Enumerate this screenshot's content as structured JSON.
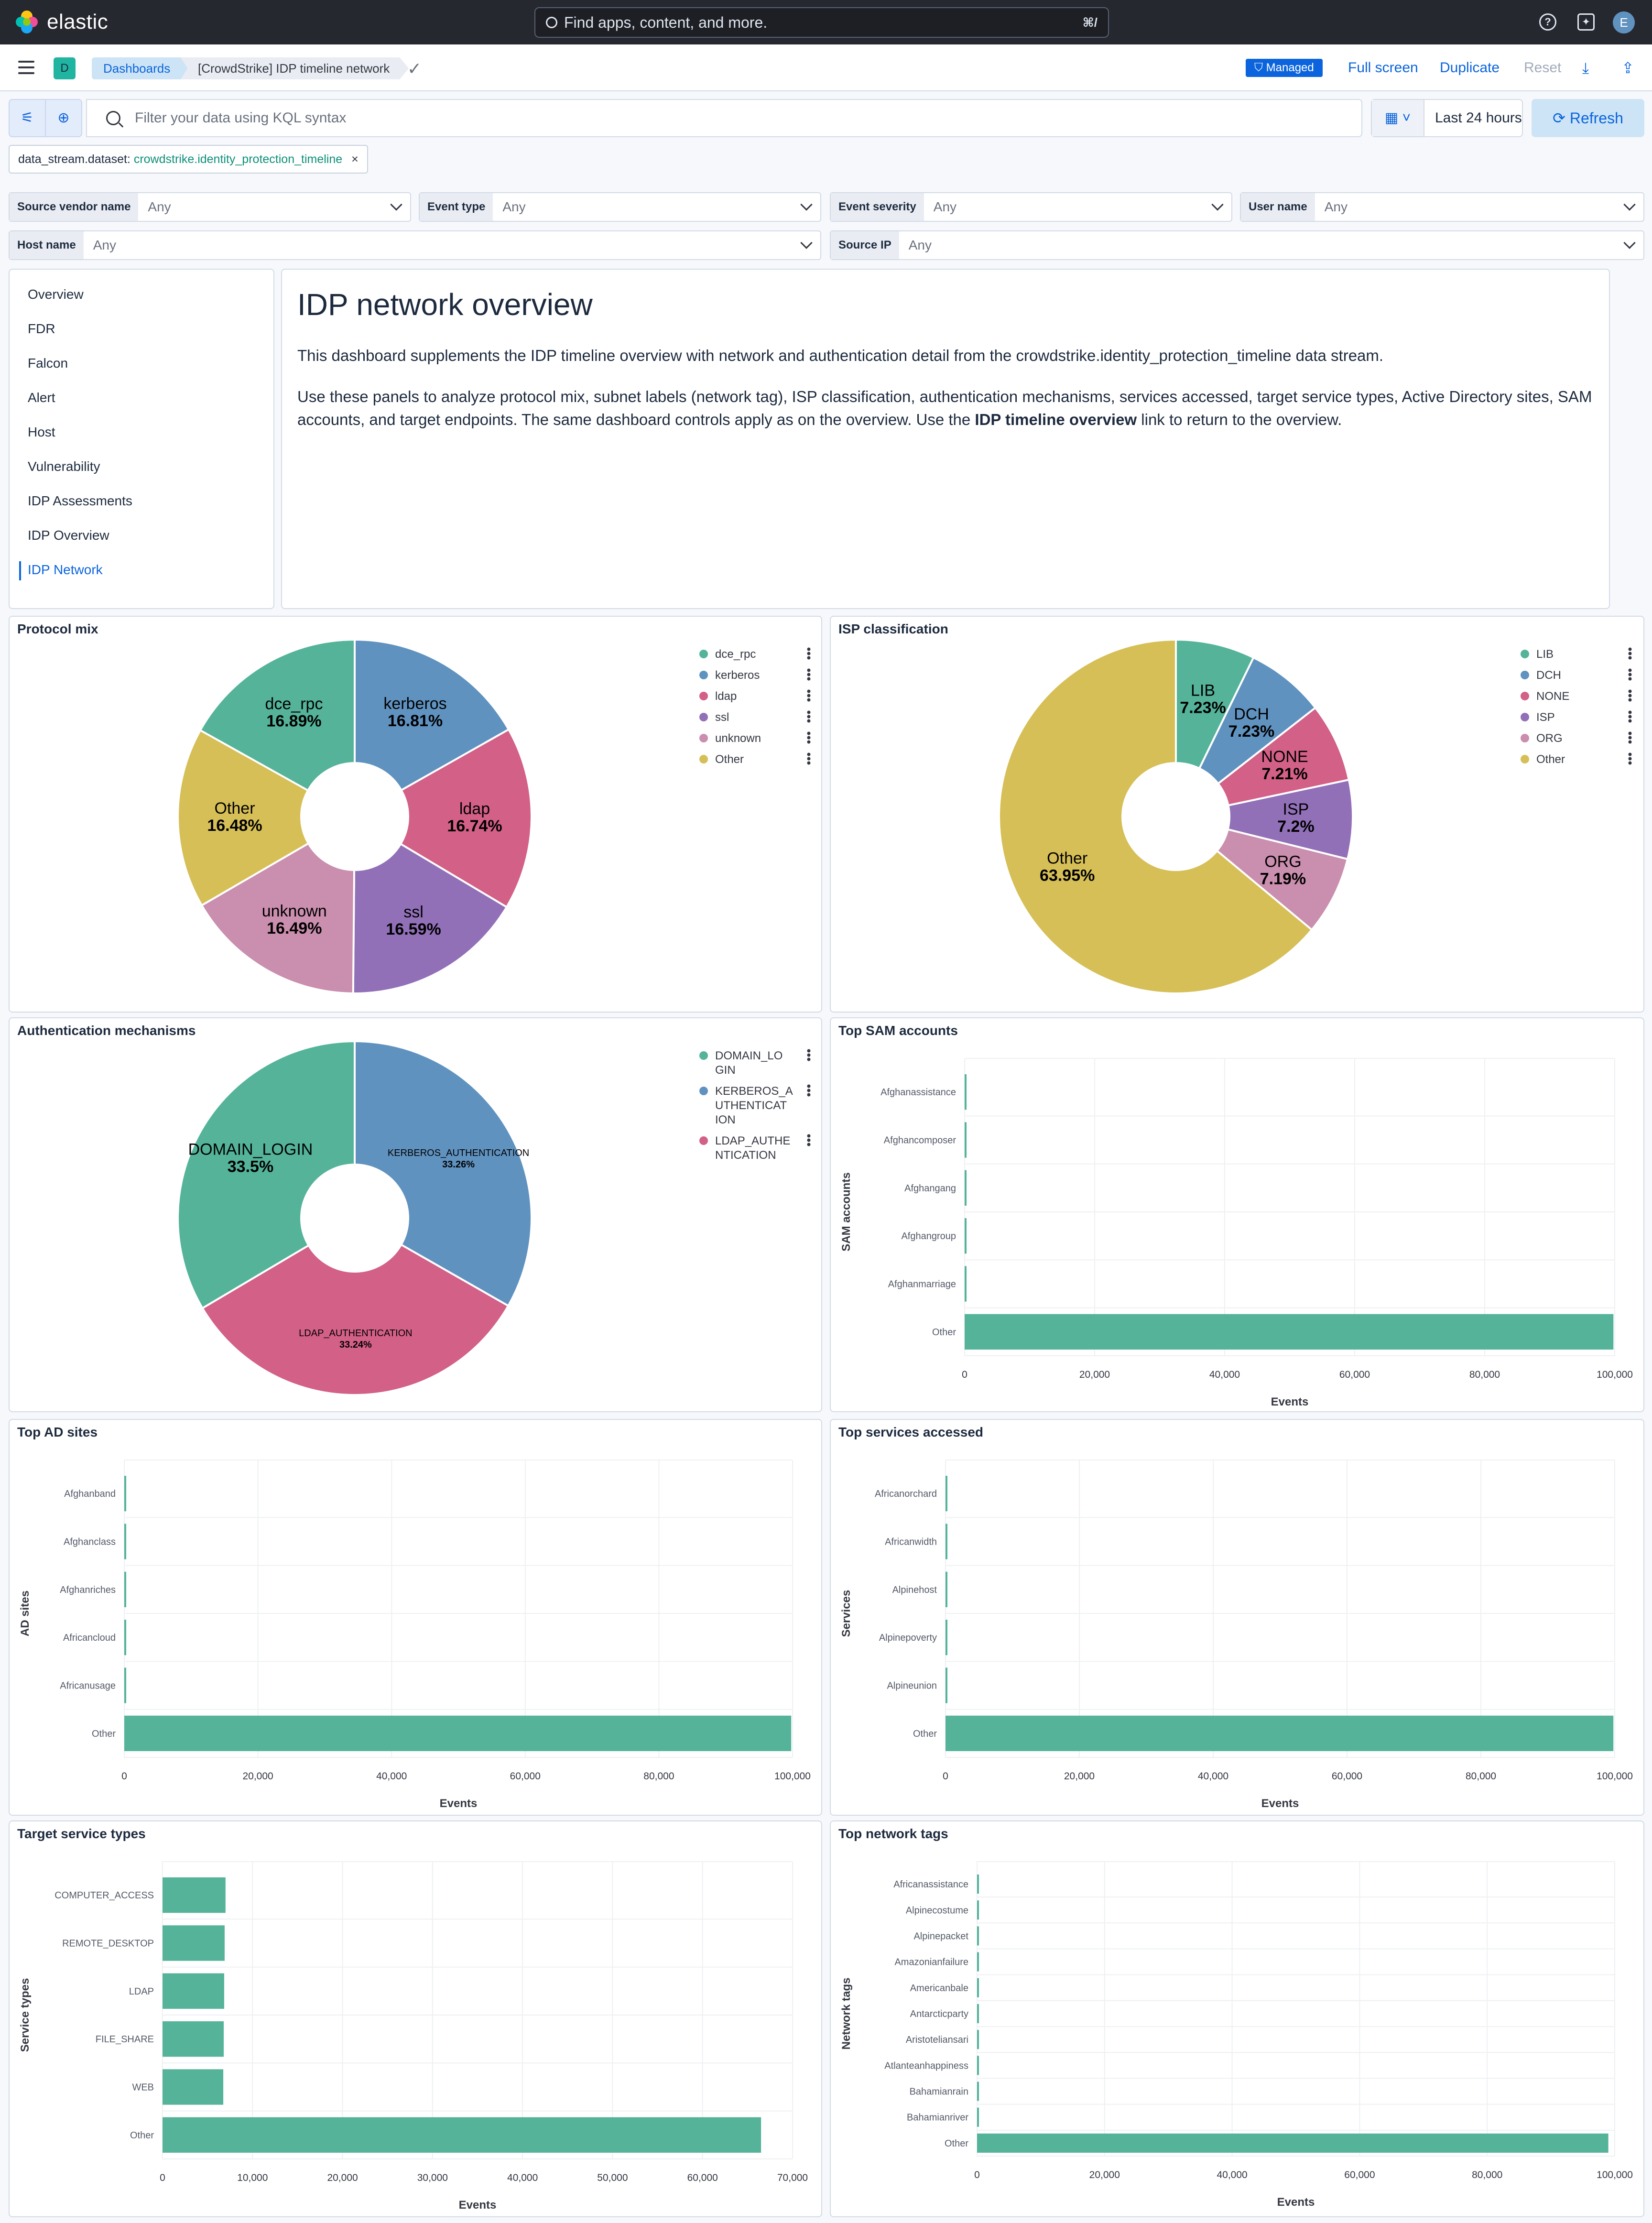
{
  "header": {
    "logo_text": "elastic",
    "search_placeholder": "Find apps, content, and more.",
    "search_shortcut": "⌘/",
    "avatar_initial": "E"
  },
  "breadcrumbs": {
    "space_initial": "D",
    "items": [
      "Dashboards",
      "[CrowdStrike] IDP timeline network"
    ]
  },
  "top_actions": {
    "managed": "Managed",
    "full_screen": "Full screen",
    "duplicate": "Duplicate",
    "reset": "Reset"
  },
  "query": {
    "placeholder": "Filter your data using KQL syntax",
    "time_range": "Last 24 hours",
    "refresh": "Refresh"
  },
  "filter_pill": {
    "field": "data_stream.dataset:",
    "value": "crowdstrike.identity_protection_timeline"
  },
  "controls": [
    {
      "label": "Source vendor name",
      "value": "Any"
    },
    {
      "label": "Event type",
      "value": "Any"
    },
    {
      "label": "Event severity",
      "value": "Any"
    },
    {
      "label": "User name",
      "value": "Any"
    },
    {
      "label": "Host name",
      "value": "Any"
    },
    {
      "label": "Source IP",
      "value": "Any"
    }
  ],
  "nav": {
    "items": [
      "Overview",
      "FDR",
      "Falcon",
      "Alert",
      "Host",
      "Vulnerability",
      "IDP Assessments",
      "IDP Overview",
      "IDP Network"
    ],
    "active": "IDP Network"
  },
  "overview": {
    "title": "IDP network overview",
    "p1": "This dashboard supplements the IDP timeline overview with network and authentication detail from the crowdstrike.identity_protection_timeline data stream.",
    "p2_before": "Use these panels to analyze protocol mix, subnet labels (network tag), ISP classification, authentication mechanisms, services accessed, target service types, Active Directory sites, SAM accounts, and target endpoints. The same dashboard controls apply as on the overview. Use the ",
    "p2_bold": "IDP timeline overview",
    "p2_after": " link to return to the overview."
  },
  "colors": {
    "teal": "#54b399",
    "blue": "#6092c0",
    "pink": "#d36086",
    "purple": "#9170b8",
    "rose": "#ca8eae",
    "yellow": "#d6bf57",
    "link": "#0b64dd"
  },
  "chart_data": [
    {
      "type": "pie",
      "title": "Protocol mix",
      "slices": [
        {
          "label": "kerberos",
          "value": 16.81,
          "display": "16.81%"
        },
        {
          "label": "ldap",
          "value": 16.74,
          "display": "16.74%"
        },
        {
          "label": "ssl",
          "value": 16.59,
          "display": "16.59%"
        },
        {
          "label": "unknown",
          "value": 16.49,
          "display": "16.49%"
        },
        {
          "label": "Other",
          "value": 16.48,
          "display": "16.48%"
        },
        {
          "label": "dce_rpc",
          "value": 16.89,
          "display": "16.89%"
        }
      ],
      "legend": [
        "dce_rpc",
        "kerberos",
        "ldap",
        "ssl",
        "unknown",
        "Other"
      ]
    },
    {
      "type": "pie",
      "title": "ISP classification",
      "slices": [
        {
          "label": "LIB",
          "value": 7.23,
          "display": "7.23%"
        },
        {
          "label": "DCH",
          "value": 7.23,
          "display": "7.23%"
        },
        {
          "label": "NONE",
          "value": 7.21,
          "display": "7.21%"
        },
        {
          "label": "ISP",
          "value": 7.2,
          "display": "7.2%"
        },
        {
          "label": "ORG",
          "value": 7.19,
          "display": "7.19%"
        },
        {
          "label": "Other",
          "value": 63.95,
          "display": "63.95%"
        }
      ],
      "legend": [
        "LIB",
        "DCH",
        "NONE",
        "ISP",
        "ORG",
        "Other"
      ]
    },
    {
      "type": "pie",
      "title": "Authentication mechanisms",
      "slices": [
        {
          "label": "KERBEROS_AUTHENTICATION",
          "value": 33.26,
          "display": "33.26%"
        },
        {
          "label": "LDAP_AUTHENTICATION",
          "value": 33.24,
          "display": "33.24%"
        },
        {
          "label": "DOMAIN_LOGIN",
          "value": 33.5,
          "display": "33.5%"
        }
      ],
      "legend": [
        "DOMAIN_LO\nGIN",
        "KERBEROS_A\nUTHENTICAT\nION",
        "LDAP_AUTHE\nNTICATION"
      ]
    },
    {
      "type": "bar",
      "orientation": "horizontal",
      "title": "Top SAM accounts",
      "categories": [
        "Afghanassistance",
        "Afghancomposer",
        "Afghangang",
        "Afghangroup",
        "Afghanmarriage",
        "Other"
      ],
      "values": [
        250,
        250,
        250,
        250,
        250,
        99800
      ],
      "xlabel": "Events",
      "ylabel": "SAM accounts",
      "xlim": [
        0,
        100000
      ],
      "xticks": [
        "0",
        "20,000",
        "40,000",
        "60,000",
        "80,000",
        "100,000"
      ]
    },
    {
      "type": "bar",
      "orientation": "horizontal",
      "title": "Top AD sites",
      "categories": [
        "Afghanband",
        "Afghanclass",
        "Afghanriches",
        "Africancloud",
        "Africanusage",
        "Other"
      ],
      "values": [
        250,
        250,
        250,
        250,
        250,
        99800
      ],
      "xlabel": "Events",
      "ylabel": "AD sites",
      "xlim": [
        0,
        100000
      ],
      "xticks": [
        "0",
        "20,000",
        "40,000",
        "60,000",
        "80,000",
        "100,000"
      ]
    },
    {
      "type": "bar",
      "orientation": "horizontal",
      "title": "Top services accessed",
      "categories": [
        "Africanorchard",
        "Africanwidth",
        "Alpinehost",
        "Alpinepoverty",
        "Alpineunion",
        "Other"
      ],
      "values": [
        250,
        250,
        250,
        250,
        250,
        99800
      ],
      "xlabel": "Events",
      "ylabel": "Services",
      "xlim": [
        0,
        100000
      ],
      "xticks": [
        "0",
        "20,000",
        "40,000",
        "60,000",
        "80,000",
        "100,000"
      ]
    },
    {
      "type": "bar",
      "orientation": "horizontal",
      "title": "Target service types",
      "categories": [
        "COMPUTER_ACCESS",
        "REMOTE_DESKTOP",
        "LDAP",
        "FILE_SHARE",
        "WEB",
        "Other"
      ],
      "values": [
        7000,
        6900,
        6850,
        6800,
        6750,
        66500
      ],
      "xlabel": "Events",
      "ylabel": "Service types",
      "xlim": [
        0,
        70000
      ],
      "xticks": [
        "0",
        "10,000",
        "20,000",
        "30,000",
        "40,000",
        "50,000",
        "60,000",
        "70,000"
      ]
    },
    {
      "type": "bar",
      "orientation": "horizontal",
      "title": "Top network tags",
      "categories": [
        "Africanassistance",
        "Alpinecostume",
        "Alpinepacket",
        "Amazonianfailure",
        "Americanbale",
        "Antarcticparty",
        "Aristoteliansari",
        "Atlanteanhappiness",
        "Bahamianrain",
        "Bahamianriver",
        "Other"
      ],
      "values": [
        250,
        250,
        250,
        250,
        250,
        250,
        250,
        250,
        250,
        250,
        99000
      ],
      "xlabel": "Events",
      "ylabel": "Network tags",
      "xlim": [
        0,
        100000
      ],
      "xticks": [
        "0",
        "20,000",
        "40,000",
        "60,000",
        "80,000",
        "100,000"
      ]
    }
  ]
}
